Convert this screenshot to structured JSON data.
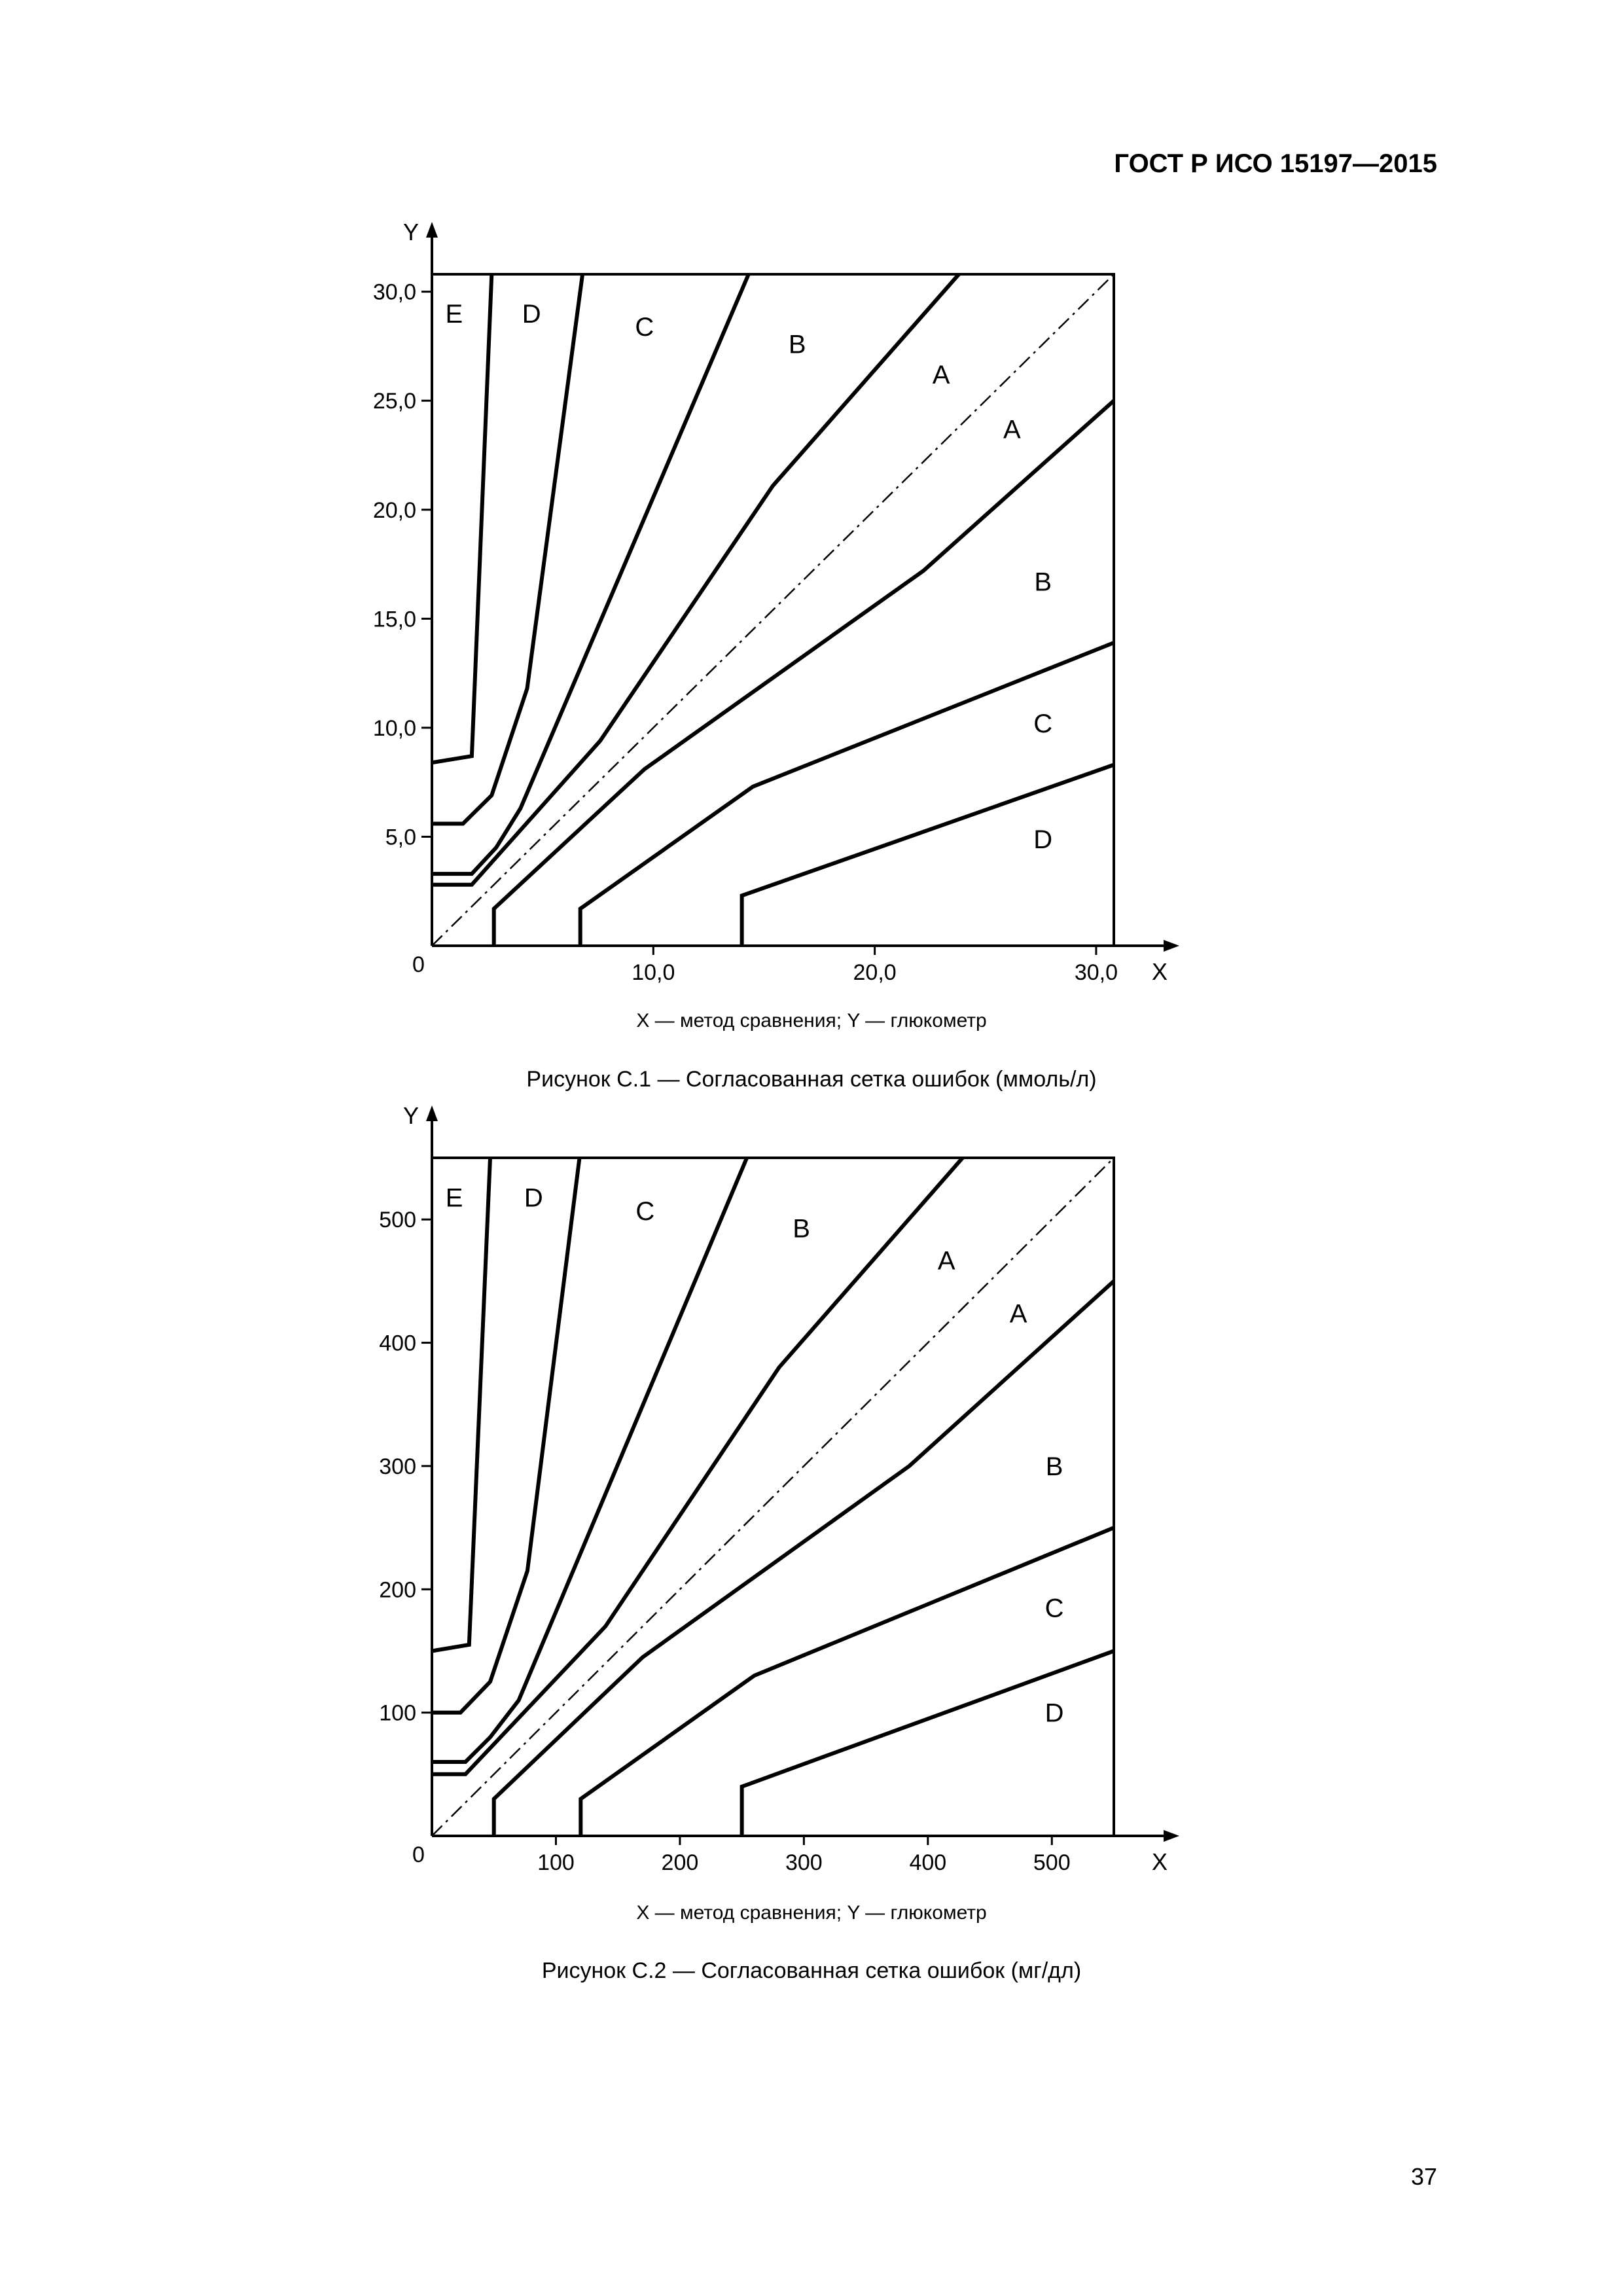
{
  "document": {
    "header": "ГОСТ Р ИСО 15197—2015",
    "page_number": "37"
  },
  "chart_data": [
    {
      "type": "line",
      "caption": "Рисунок С.1 — Согласованная сетка ошибок (ммоль/л)",
      "legend_text": "X — метод сравнения; Y — глюкометр",
      "xlabel": "X",
      "ylabel": "Y",
      "origin_label": "0",
      "xlim": [
        0,
        30.8
      ],
      "ylim": [
        0,
        30.8
      ],
      "x_ticks": [
        {
          "value": 10,
          "label": "10,0"
        },
        {
          "value": 20,
          "label": "20,0"
        },
        {
          "value": 30,
          "label": "30,0"
        }
      ],
      "y_ticks": [
        {
          "value": 5,
          "label": "5,0"
        },
        {
          "value": 10,
          "label": "10,0"
        },
        {
          "value": 15,
          "label": "15,0"
        },
        {
          "value": 20,
          "label": "20,0"
        },
        {
          "value": 25,
          "label": "25,0"
        },
        {
          "value": 30,
          "label": "30,0"
        }
      ],
      "diagonal": [
        [
          0,
          0
        ],
        [
          30.8,
          30.8
        ]
      ],
      "series": [
        {
          "zone": "E-D",
          "points": [
            [
              0,
              8.4
            ],
            [
              1.8,
              8.7
            ],
            [
              2.7,
              30.8
            ]
          ]
        },
        {
          "zone": "D-C upper",
          "points": [
            [
              0,
              5.6
            ],
            [
              1.4,
              5.6
            ],
            [
              2.7,
              6.9
            ],
            [
              4.3,
              11.8
            ],
            [
              6.8,
              30.8
            ]
          ]
        },
        {
          "zone": "C-B upper",
          "points": [
            [
              0,
              3.3
            ],
            [
              1.8,
              3.3
            ],
            [
              2.9,
              4.5
            ],
            [
              4.0,
              6.3
            ],
            [
              14.3,
              30.8
            ]
          ]
        },
        {
          "zone": "B-A upper",
          "points": [
            [
              0,
              2.8
            ],
            [
              1.8,
              2.8
            ],
            [
              7.6,
              9.4
            ],
            [
              15.4,
              21.1
            ],
            [
              23.8,
              30.8
            ]
          ]
        },
        {
          "zone": "A-B lower",
          "points": [
            [
              2.8,
              0
            ],
            [
              2.8,
              1.7
            ],
            [
              9.6,
              8.1
            ],
            [
              22.2,
              17.2
            ],
            [
              30.8,
              25.0
            ]
          ]
        },
        {
          "zone": "B-C lower",
          "points": [
            [
              6.7,
              0
            ],
            [
              6.7,
              1.7
            ],
            [
              14.5,
              7.3
            ],
            [
              30.8,
              13.9
            ]
          ]
        },
        {
          "zone": "C-D lower",
          "points": [
            [
              14.0,
              0
            ],
            [
              14.0,
              2.3
            ],
            [
              30.8,
              8.3
            ]
          ]
        }
      ],
      "zone_labels": [
        {
          "text": "E",
          "x": 1.0,
          "y": 29.0
        },
        {
          "text": "D",
          "x": 4.5,
          "y": 29.0
        },
        {
          "text": "C",
          "x": 9.6,
          "y": 28.4
        },
        {
          "text": "B",
          "x": 16.5,
          "y": 27.6
        },
        {
          "text": "A",
          "x": 23.0,
          "y": 26.2
        },
        {
          "text": "A",
          "x": 26.2,
          "y": 23.7
        },
        {
          "text": "B",
          "x": 27.6,
          "y": 16.7
        },
        {
          "text": "C",
          "x": 27.6,
          "y": 10.2
        },
        {
          "text": "D",
          "x": 27.6,
          "y": 4.9
        }
      ]
    },
    {
      "type": "line",
      "caption": "Рисунок С.2 — Согласованная сетка ошибок (мг/дл)",
      "legend_text": "X — метод сравнения; Y — глюкометр",
      "xlabel": "X",
      "ylabel": "Y",
      "origin_label": "0",
      "xlim": [
        0,
        550
      ],
      "ylim": [
        0,
        550
      ],
      "x_ticks": [
        {
          "value": 100,
          "label": "100"
        },
        {
          "value": 200,
          "label": "200"
        },
        {
          "value": 300,
          "label": "300"
        },
        {
          "value": 400,
          "label": "400"
        },
        {
          "value": 500,
          "label": "500"
        }
      ],
      "y_ticks": [
        {
          "value": 100,
          "label": "100"
        },
        {
          "value": 200,
          "label": "200"
        },
        {
          "value": 300,
          "label": "300"
        },
        {
          "value": 400,
          "label": "400"
        },
        {
          "value": 500,
          "label": "500"
        }
      ],
      "diagonal": [
        [
          0,
          0
        ],
        [
          550,
          550
        ]
      ],
      "series": [
        {
          "zone": "E-D",
          "points": [
            [
              0,
              150
            ],
            [
              30,
              155
            ],
            [
              47,
              550
            ]
          ]
        },
        {
          "zone": "D-C upper",
          "points": [
            [
              0,
              100
            ],
            [
              23,
              100
            ],
            [
              47,
              125
            ],
            [
              77,
              215
            ],
            [
              119,
              550
            ]
          ]
        },
        {
          "zone": "C-B upper",
          "points": [
            [
              0,
              60
            ],
            [
              27,
              60
            ],
            [
              47,
              80
            ],
            [
              70,
              110
            ],
            [
              254,
              550
            ]
          ]
        },
        {
          "zone": "B-A upper",
          "points": [
            [
              0,
              50
            ],
            [
              27,
              50
            ],
            [
              140,
              170
            ],
            [
              280,
              380
            ],
            [
              428,
              550
            ]
          ]
        },
        {
          "zone": "A-B lower",
          "points": [
            [
              50,
              0
            ],
            [
              50,
              30
            ],
            [
              170,
              145
            ],
            [
              385,
              300
            ],
            [
              550,
              450
            ]
          ]
        },
        {
          "zone": "B-C lower",
          "points": [
            [
              120,
              0
            ],
            [
              120,
              30
            ],
            [
              260,
              130
            ],
            [
              550,
              250
            ]
          ]
        },
        {
          "zone": "C-D lower",
          "points": [
            [
              250,
              0
            ],
            [
              250,
              40
            ],
            [
              550,
              150
            ]
          ]
        }
      ],
      "zone_labels": [
        {
          "text": "E",
          "x": 18,
          "y": 518
        },
        {
          "text": "D",
          "x": 82,
          "y": 518
        },
        {
          "text": "C",
          "x": 172,
          "y": 507
        },
        {
          "text": "B",
          "x": 298,
          "y": 493
        },
        {
          "text": "A",
          "x": 415,
          "y": 467
        },
        {
          "text": "A",
          "x": 473,
          "y": 424
        },
        {
          "text": "B",
          "x": 502,
          "y": 300
        },
        {
          "text": "C",
          "x": 502,
          "y": 185
        },
        {
          "text": "D",
          "x": 502,
          "y": 100
        }
      ]
    }
  ]
}
